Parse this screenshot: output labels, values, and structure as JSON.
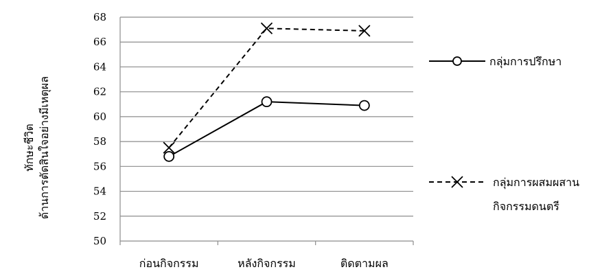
{
  "chart_data": {
    "type": "line",
    "categories": [
      "ก่อนกิจกรรม",
      "หลังกิจกรรม",
      "ติดตามผล"
    ],
    "series": [
      {
        "name": "กลุ่มการปรึกษา",
        "values": [
          56.8,
          61.2,
          60.9
        ],
        "line_style": "solid",
        "marker": "circle"
      },
      {
        "name_lines": [
          "กลุ่มการผสมผสาน",
          "กิจกรรมดนตรี"
        ],
        "values": [
          57.5,
          67.1,
          66.9
        ],
        "line_style": "dashed",
        "marker": "x"
      }
    ],
    "ylabel_lines": [
      "ทักษะชีวิต",
      "ด้านการตัดสินใจอย่างมีเหตุผล"
    ],
    "ylim": [
      50,
      68
    ],
    "ytick_step": 2,
    "grid": true,
    "legend_position": "right"
  }
}
